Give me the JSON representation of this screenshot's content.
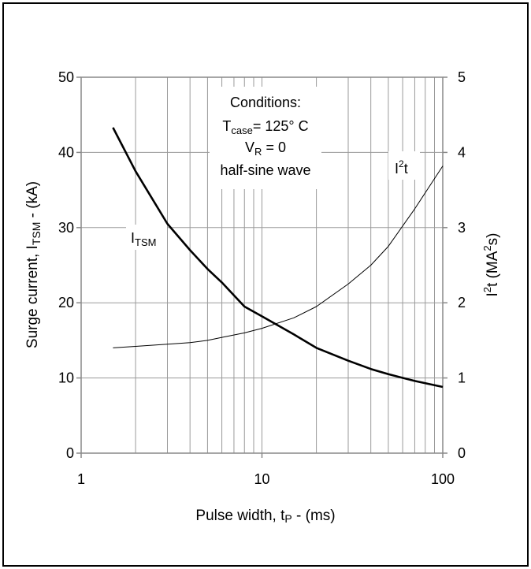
{
  "chart_data": {
    "type": "line",
    "x_scale": "log",
    "xlim": [
      1,
      100
    ],
    "x_ticks": [
      "1",
      "10",
      "100"
    ],
    "xlabel": {
      "main": "Pulse width, t",
      "sub": "P",
      "suffix": " - (ms)"
    },
    "y_left": {
      "lim": [
        0,
        50
      ],
      "ticks": [
        "0",
        "10",
        "20",
        "30",
        "40",
        "50"
      ],
      "label": {
        "main": "Surge current, I",
        "sub": "TSM",
        "suffix": " -  (kA)"
      }
    },
    "y_right": {
      "lim": [
        0,
        5
      ],
      "ticks": [
        "0",
        "1",
        "2",
        "3",
        "4",
        "5"
      ],
      "label": {
        "main": "I",
        "sup": "2",
        "mid": "t (MA",
        "sup2": "2",
        "suffix": "s)"
      }
    },
    "grid": true,
    "annotation": {
      "line1": "Conditions:",
      "line2_main": "T",
      "line2_sub": "case",
      "line2_suffix": "= 125° C",
      "line3_main": "V",
      "line3_sub": "R",
      "line3_suffix": " = 0",
      "line4": "half-sine wave"
    },
    "series": [
      {
        "name": "I",
        "name_sub": "TSM",
        "axis": "left",
        "color": "#000000",
        "x": [
          1.5,
          2,
          3,
          4,
          5,
          6,
          8,
          10,
          15,
          20,
          30,
          40,
          50,
          70,
          100
        ],
        "y": [
          43.3,
          37.5,
          30.5,
          27,
          24.5,
          22.7,
          19.5,
          18.2,
          15.8,
          14,
          12.3,
          11.2,
          10.5,
          9.6,
          8.8
        ]
      },
      {
        "name": "I",
        "name_sup": "2",
        "name_suffix": "t",
        "axis": "right",
        "color": "#000000",
        "x": [
          1.5,
          2,
          3,
          4,
          5,
          6,
          8,
          10,
          15,
          20,
          30,
          40,
          50,
          70,
          100
        ],
        "y": [
          1.4,
          1.42,
          1.45,
          1.47,
          1.5,
          1.54,
          1.6,
          1.66,
          1.8,
          1.95,
          2.25,
          2.5,
          2.75,
          3.25,
          3.82
        ]
      }
    ]
  }
}
